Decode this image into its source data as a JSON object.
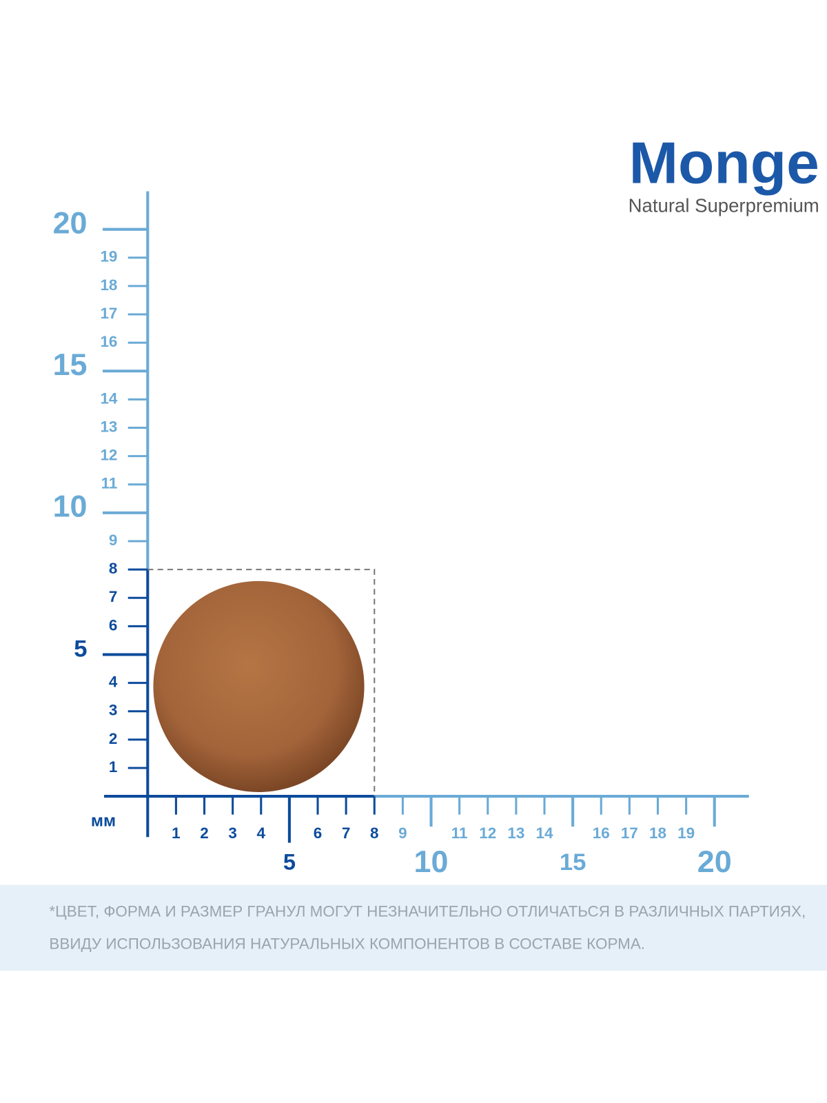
{
  "logo": {
    "brand": "Monge",
    "tagline": "Natural Superpremium"
  },
  "y_axis": {
    "minor": [
      1,
      2,
      3,
      4,
      6,
      7,
      8,
      9,
      11,
      12,
      13,
      14,
      16,
      17,
      18,
      19
    ],
    "major": [
      5,
      10,
      15,
      20
    ]
  },
  "x_axis": {
    "unit": "мм",
    "minor": [
      1,
      2,
      3,
      4,
      6,
      7,
      8,
      9,
      11,
      12,
      13,
      14,
      16,
      17,
      18,
      19
    ],
    "major": [
      5,
      10,
      15,
      20
    ]
  },
  "note": {
    "lines": [
      "*ЦВЕТ, ФОРМА И РАЗМЕР ГРАНУЛ МОГУТ НЕЗНАЧИТЕЛЬНО ОТЛИЧАТЬСЯ В РАЗЛИЧНЫХ ПАРТИЯХ,",
      "ВВИДУ ИСПОЛЬЗОВАНИЯ НАТУРАЛЬНЫХ КОМПОНЕНТОВ В СОСТАВЕ КОРМА."
    ]
  }
}
